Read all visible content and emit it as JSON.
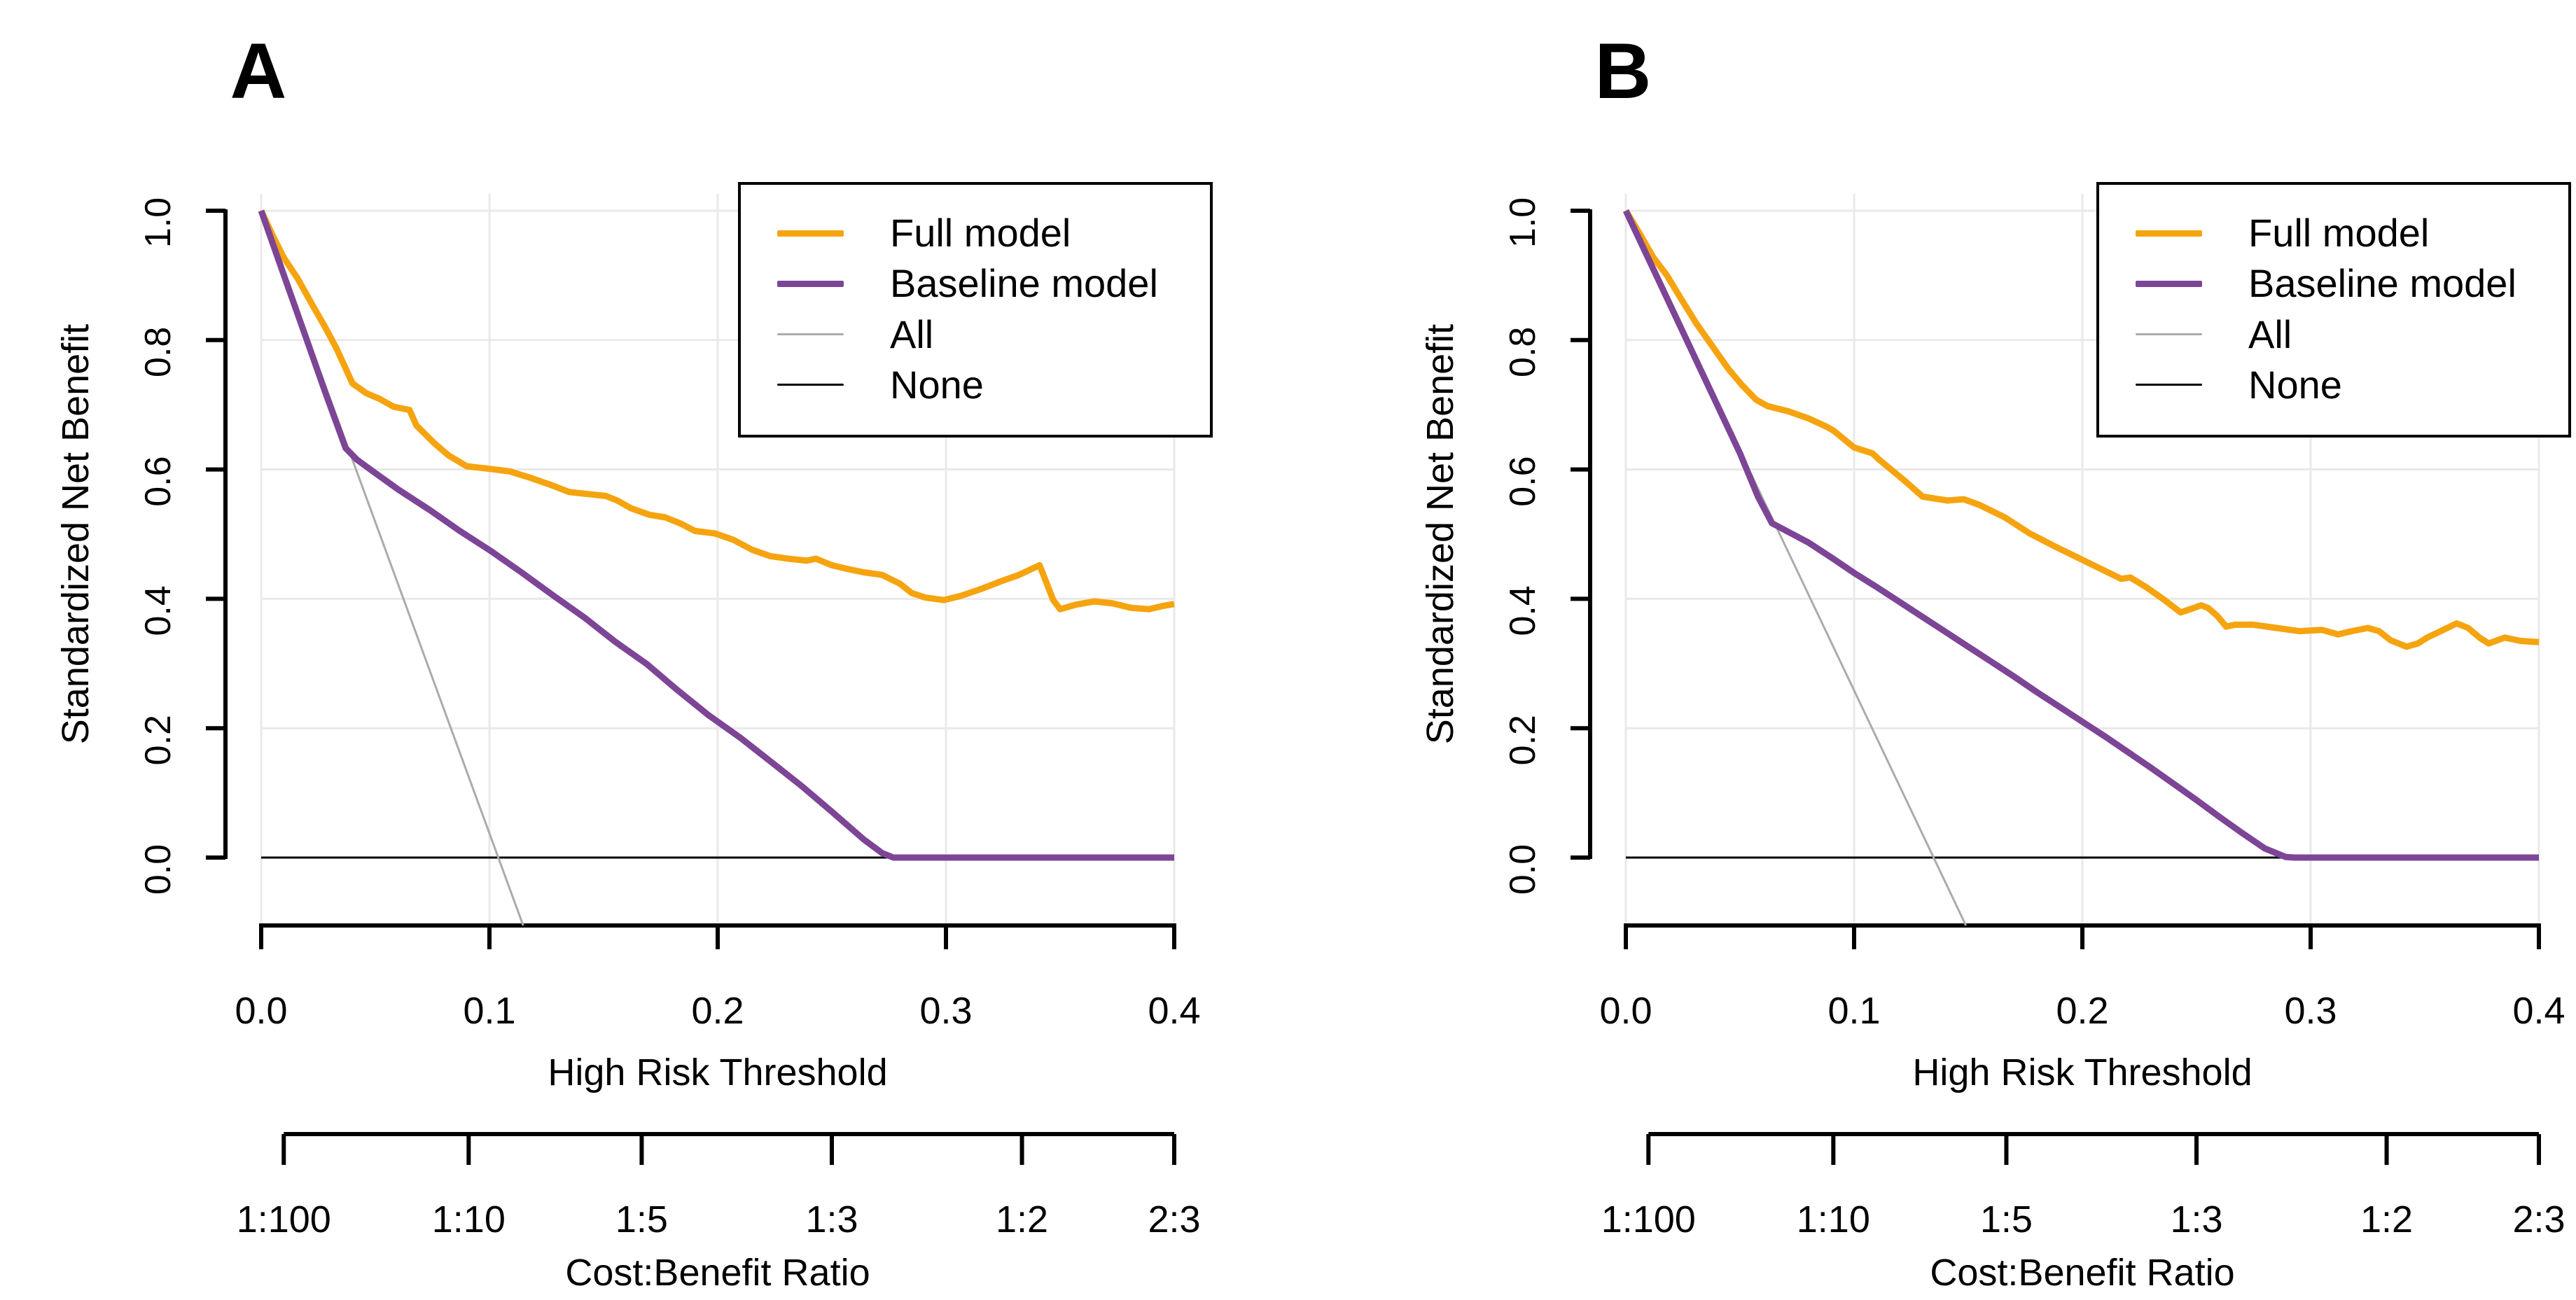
{
  "figure": {
    "background": "#ffffff"
  },
  "colors": {
    "full_model": "#F5A40F",
    "baseline_model": "#7D4596",
    "all": "#ABABAB",
    "none": "#000000",
    "grid": "#E9E9E9",
    "axis": "#000000",
    "text": "#000000"
  },
  "axes": {
    "y_title": "Standardized Net Benefit",
    "x_title": "High Risk Threshold",
    "secondary_title": "Cost:Benefit Ratio",
    "y_ticks": [
      "0.0",
      "0.2",
      "0.4",
      "0.6",
      "0.8",
      "1.0"
    ],
    "y_tick_values": [
      0,
      0.2,
      0.4,
      0.6,
      0.8,
      1.0
    ],
    "x_ticks": [
      "0.0",
      "0.1",
      "0.2",
      "0.3",
      "0.4"
    ],
    "x_tick_values": [
      0,
      0.1,
      0.2,
      0.3,
      0.4
    ],
    "ratio_ticks": [
      "1:100",
      "1:10",
      "1:5",
      "1:3",
      "1:2",
      "2:3"
    ],
    "ratio_tick_positions": [
      0.0099,
      0.0909,
      0.1667,
      0.25,
      0.3333,
      0.4
    ]
  },
  "legend": {
    "entries": [
      {
        "label": "Full model",
        "color": "#F5A40F",
        "line_width": 9
      },
      {
        "label": "Baseline model",
        "color": "#7D4596",
        "line_width": 9
      },
      {
        "label": "All",
        "color": "#ABABAB",
        "line_width": 3
      },
      {
        "label": "None",
        "color": "#000000",
        "line_width": 3
      }
    ]
  },
  "panels": [
    {
      "label": "A"
    },
    {
      "label": "B"
    }
  ],
  "chart_data": [
    {
      "type": "line",
      "panel": "A",
      "xlabel": "High Risk Threshold",
      "ylabel": "Standardized Net Benefit",
      "secondary_xlabel": "Cost:Benefit Ratio",
      "xlim": [
        0,
        0.4
      ],
      "ylim": [
        -0.105,
        1.0
      ],
      "x_ticks": [
        0,
        0.1,
        0.2,
        0.3,
        0.4
      ],
      "y_ticks": [
        0,
        0.2,
        0.4,
        0.6,
        0.8,
        1.0
      ],
      "grid": true,
      "legend_position": "topright",
      "series": [
        {
          "name": "Full model",
          "color": "#F5A40F",
          "width": 9,
          "points": [
            [
              0,
              1.0
            ],
            [
              0.005,
              0.962
            ],
            [
              0.01,
              0.927
            ],
            [
              0.016,
              0.895
            ],
            [
              0.022,
              0.857
            ],
            [
              0.028,
              0.82
            ],
            [
              0.033,
              0.787
            ],
            [
              0.04,
              0.733
            ],
            [
              0.046,
              0.718
            ],
            [
              0.052,
              0.709
            ],
            [
              0.058,
              0.697
            ],
            [
              0.065,
              0.692
            ],
            [
              0.068,
              0.668
            ],
            [
              0.076,
              0.64
            ],
            [
              0.082,
              0.622
            ],
            [
              0.09,
              0.605
            ],
            [
              0.1,
              0.601
            ],
            [
              0.109,
              0.597
            ],
            [
              0.118,
              0.587
            ],
            [
              0.127,
              0.576
            ],
            [
              0.135,
              0.565
            ],
            [
              0.143,
              0.562
            ],
            [
              0.151,
              0.559
            ],
            [
              0.156,
              0.552
            ],
            [
              0.162,
              0.54
            ],
            [
              0.17,
              0.53
            ],
            [
              0.177,
              0.526
            ],
            [
              0.184,
              0.516
            ],
            [
              0.19,
              0.505
            ],
            [
              0.199,
              0.501
            ],
            [
              0.207,
              0.491
            ],
            [
              0.215,
              0.476
            ],
            [
              0.223,
              0.466
            ],
            [
              0.231,
              0.462
            ],
            [
              0.239,
              0.459
            ],
            [
              0.243,
              0.462
            ],
            [
              0.25,
              0.452
            ],
            [
              0.257,
              0.446
            ],
            [
              0.264,
              0.441
            ],
            [
              0.272,
              0.437
            ],
            [
              0.28,
              0.423
            ],
            [
              0.285,
              0.409
            ],
            [
              0.291,
              0.402
            ],
            [
              0.299,
              0.398
            ],
            [
              0.307,
              0.405
            ],
            [
              0.316,
              0.416
            ],
            [
              0.324,
              0.427
            ],
            [
              0.332,
              0.437
            ],
            [
              0.341,
              0.452
            ],
            [
              0.347,
              0.398
            ],
            [
              0.35,
              0.384
            ],
            [
              0.357,
              0.391
            ],
            [
              0.365,
              0.396
            ],
            [
              0.373,
              0.393
            ],
            [
              0.381,
              0.386
            ],
            [
              0.389,
              0.384
            ],
            [
              0.395,
              0.389
            ],
            [
              0.4,
              0.392
            ]
          ]
        },
        {
          "name": "Baseline model",
          "color": "#7D4596",
          "width": 9,
          "points": [
            [
              0,
              1.0
            ],
            [
              0.009,
              0.91
            ],
            [
              0.018,
              0.82
            ],
            [
              0.028,
              0.72
            ],
            [
              0.037,
              0.633
            ],
            [
              0.042,
              0.615
            ],
            [
              0.049,
              0.597
            ],
            [
              0.06,
              0.569
            ],
            [
              0.074,
              0.537
            ],
            [
              0.087,
              0.505
            ],
            [
              0.101,
              0.473
            ],
            [
              0.114,
              0.441
            ],
            [
              0.128,
              0.405
            ],
            [
              0.142,
              0.37
            ],
            [
              0.155,
              0.334
            ],
            [
              0.169,
              0.299
            ],
            [
              0.182,
              0.26
            ],
            [
              0.196,
              0.22
            ],
            [
              0.21,
              0.185
            ],
            [
              0.223,
              0.149
            ],
            [
              0.237,
              0.11
            ],
            [
              0.25,
              0.071
            ],
            [
              0.264,
              0.028
            ],
            [
              0.272,
              0.007
            ],
            [
              0.277,
              0.0
            ],
            [
              0.3,
              0
            ],
            [
              0.35,
              0
            ],
            [
              0.4,
              0
            ]
          ]
        },
        {
          "name": "All",
          "color": "#ABABAB",
          "width": 3,
          "points": [
            [
              0,
              1.0
            ],
            [
              0.1148,
              -0.105
            ]
          ]
        },
        {
          "name": "None",
          "color": "#000000",
          "width": 3,
          "points": [
            [
              0,
              0
            ],
            [
              0.4,
              0
            ]
          ]
        }
      ]
    },
    {
      "type": "line",
      "panel": "B",
      "xlabel": "High Risk Threshold",
      "ylabel": "Standardized Net Benefit",
      "secondary_xlabel": "Cost:Benefit Ratio",
      "xlim": [
        0,
        0.4
      ],
      "ylim": [
        -0.105,
        1.0
      ],
      "x_ticks": [
        0,
        0.1,
        0.2,
        0.3,
        0.4
      ],
      "y_ticks": [
        0,
        0.2,
        0.4,
        0.6,
        0.8,
        1.0
      ],
      "grid": true,
      "legend_position": "topright",
      "series": [
        {
          "name": "Full model",
          "color": "#F5A40F",
          "width": 9,
          "points": [
            [
              0,
              1.0
            ],
            [
              0.006,
              0.965
            ],
            [
              0.012,
              0.928
            ],
            [
              0.018,
              0.9
            ],
            [
              0.024,
              0.865
            ],
            [
              0.031,
              0.825
            ],
            [
              0.038,
              0.79
            ],
            [
              0.045,
              0.755
            ],
            [
              0.051,
              0.73
            ],
            [
              0.057,
              0.708
            ],
            [
              0.062,
              0.698
            ],
            [
              0.071,
              0.69
            ],
            [
              0.08,
              0.679
            ],
            [
              0.088,
              0.666
            ],
            [
              0.091,
              0.66
            ],
            [
              0.1,
              0.634
            ],
            [
              0.108,
              0.625
            ],
            [
              0.111,
              0.615
            ],
            [
              0.122,
              0.583
            ],
            [
              0.13,
              0.558
            ],
            [
              0.141,
              0.552
            ],
            [
              0.148,
              0.554
            ],
            [
              0.155,
              0.545
            ],
            [
              0.166,
              0.526
            ],
            [
              0.177,
              0.501
            ],
            [
              0.188,
              0.481
            ],
            [
              0.199,
              0.462
            ],
            [
              0.21,
              0.443
            ],
            [
              0.217,
              0.431
            ],
            [
              0.221,
              0.433
            ],
            [
              0.228,
              0.418
            ],
            [
              0.236,
              0.398
            ],
            [
              0.243,
              0.379
            ],
            [
              0.249,
              0.386
            ],
            [
              0.252,
              0.39
            ],
            [
              0.255,
              0.386
            ],
            [
              0.259,
              0.374
            ],
            [
              0.263,
              0.357
            ],
            [
              0.267,
              0.36
            ],
            [
              0.275,
              0.36
            ],
            [
              0.285,
              0.355
            ],
            [
              0.295,
              0.35
            ],
            [
              0.305,
              0.352
            ],
            [
              0.312,
              0.345
            ],
            [
              0.318,
              0.35
            ],
            [
              0.325,
              0.355
            ],
            [
              0.33,
              0.35
            ],
            [
              0.335,
              0.336
            ],
            [
              0.342,
              0.326
            ],
            [
              0.347,
              0.331
            ],
            [
              0.351,
              0.34
            ],
            [
              0.357,
              0.35
            ],
            [
              0.364,
              0.362
            ],
            [
              0.369,
              0.355
            ],
            [
              0.374,
              0.34
            ],
            [
              0.378,
              0.331
            ],
            [
              0.385,
              0.34
            ],
            [
              0.392,
              0.335
            ],
            [
              0.4,
              0.333
            ]
          ]
        },
        {
          "name": "Baseline model",
          "color": "#7D4596",
          "width": 9,
          "points": [
            [
              0,
              1.0
            ],
            [
              0.01,
              0.925
            ],
            [
              0.02,
              0.85
            ],
            [
              0.03,
              0.775
            ],
            [
              0.04,
              0.7
            ],
            [
              0.05,
              0.625
            ],
            [
              0.058,
              0.557
            ],
            [
              0.064,
              0.517
            ],
            [
              0.072,
              0.502
            ],
            [
              0.08,
              0.487
            ],
            [
              0.09,
              0.464
            ],
            [
              0.1,
              0.44
            ],
            [
              0.11,
              0.418
            ],
            [
              0.12,
              0.395
            ],
            [
              0.13,
              0.372
            ],
            [
              0.14,
              0.349
            ],
            [
              0.15,
              0.326
            ],
            [
              0.16,
              0.303
            ],
            [
              0.17,
              0.28
            ],
            [
              0.18,
              0.256
            ],
            [
              0.19,
              0.233
            ],
            [
              0.2,
              0.21
            ],
            [
              0.21,
              0.187
            ],
            [
              0.22,
              0.163
            ],
            [
              0.23,
              0.139
            ],
            [
              0.24,
              0.114
            ],
            [
              0.25,
              0.089
            ],
            [
              0.26,
              0.063
            ],
            [
              0.27,
              0.038
            ],
            [
              0.28,
              0.014
            ],
            [
              0.289,
              0.001
            ],
            [
              0.293,
              0
            ],
            [
              0.3,
              0
            ],
            [
              0.35,
              0
            ],
            [
              0.4,
              0
            ]
          ]
        },
        {
          "name": "All",
          "color": "#ABABAB",
          "width": 3,
          "points": [
            [
              0,
              1.0
            ],
            [
              0.149,
              -0.105
            ]
          ]
        },
        {
          "name": "None",
          "color": "#000000",
          "width": 3,
          "points": [
            [
              0,
              0
            ],
            [
              0.4,
              0
            ]
          ]
        }
      ]
    }
  ]
}
